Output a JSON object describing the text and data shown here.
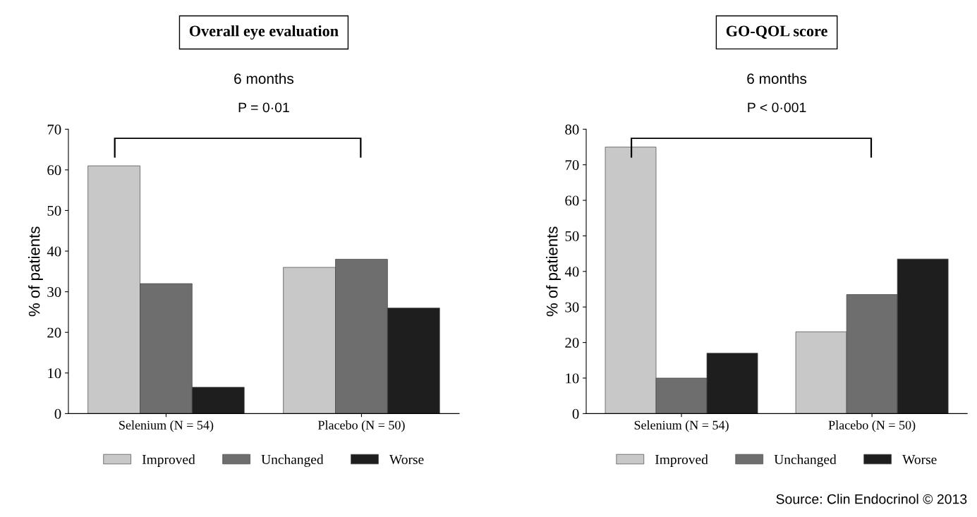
{
  "chart_data": [
    {
      "type": "bar",
      "title": "Overall eye evaluation",
      "subtitle": "6 months",
      "ylabel": "% of patients",
      "categories": [
        "Selenium (N = 54)",
        "Placebo (N = 50)"
      ],
      "series": [
        {
          "name": "Improved",
          "color": "#c8c8c8",
          "values": [
            61,
            36
          ]
        },
        {
          "name": "Unchanged",
          "color": "#6e6e6e",
          "values": [
            32,
            38
          ]
        },
        {
          "name": "Worse",
          "color": "#1e1e1e",
          "values": [
            6.5,
            26
          ]
        }
      ],
      "ylim": [
        0,
        70
      ],
      "yticks": [
        0,
        10,
        20,
        30,
        40,
        50,
        60,
        70
      ],
      "grid": false,
      "legend": "bottom",
      "annotations": [
        "P = 0·01"
      ]
    },
    {
      "type": "bar",
      "title": "GO-QOL score",
      "subtitle": "6 months",
      "ylabel": "% of patients",
      "categories": [
        "Selenium (N = 54)",
        "Placebo (N = 50)"
      ],
      "series": [
        {
          "name": "Improved",
          "color": "#c8c8c8",
          "values": [
            75,
            23
          ]
        },
        {
          "name": "Unchanged",
          "color": "#6e6e6e",
          "values": [
            10,
            33.5
          ]
        },
        {
          "name": "Worse",
          "color": "#1e1e1e",
          "values": [
            17,
            43.5
          ]
        }
      ],
      "ylim": [
        0,
        80
      ],
      "yticks": [
        0,
        10,
        20,
        30,
        40,
        50,
        60,
        70,
        80
      ],
      "grid": false,
      "legend": "bottom",
      "annotations": [
        "P < 0·001",
        "Source: Clin Endocrinol © 2013"
      ]
    }
  ]
}
